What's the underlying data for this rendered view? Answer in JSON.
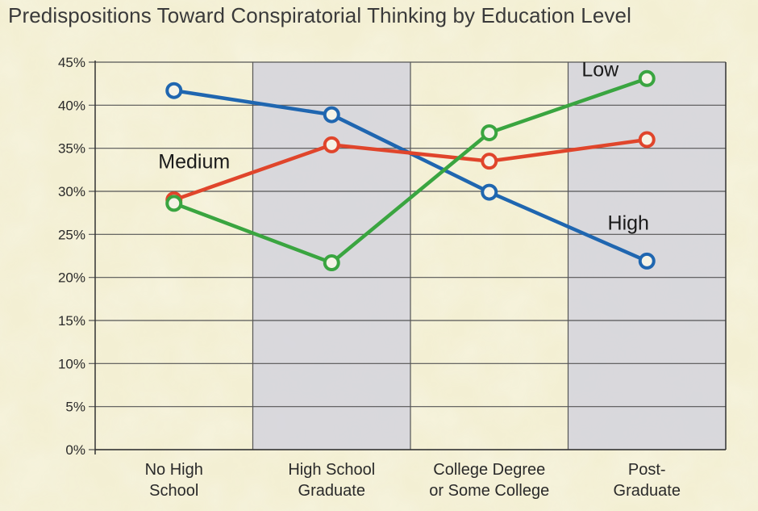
{
  "chart_data": {
    "type": "line",
    "title": "Predispositions Toward Conspiratorial Thinking by Education Level",
    "categories": [
      [
        "No High",
        "School"
      ],
      [
        "High School",
        "Graduate"
      ],
      [
        "College Degree",
        "or Some College"
      ],
      [
        "Post-",
        "Graduate"
      ]
    ],
    "ylim": [
      0,
      45
    ],
    "yticks": [
      "0%",
      "5%",
      "10%",
      "15%",
      "20%",
      "25%",
      "30%",
      "35%",
      "40%",
      "45%"
    ],
    "grid": true,
    "series": [
      {
        "name": "High",
        "color": "#1f66b0",
        "values": [
          41.7,
          38.9,
          29.9,
          21.9
        ]
      },
      {
        "name": "Medium",
        "color": "#e0452b",
        "values": [
          29.0,
          35.4,
          33.5,
          36.0
        ]
      },
      {
        "name": "Low",
        "color": "#3aa540",
        "values": [
          28.6,
          21.7,
          36.8,
          43.1
        ]
      }
    ],
    "colors": {
      "shade": "#d6d6dc",
      "grid": "#555555",
      "text": "#2a2a2a"
    }
  }
}
